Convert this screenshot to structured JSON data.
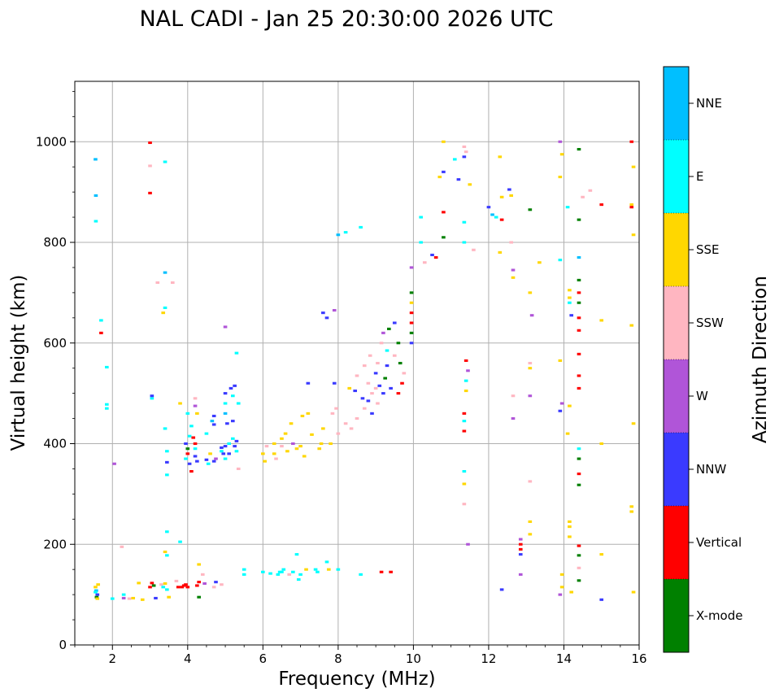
{
  "chart_data": {
    "type": "scatter",
    "title": "NAL CADI - Jan 25 20:30:00 2026 UTC",
    "xlabel": "Frequency (MHz)",
    "ylabel": "Virtual height (km)",
    "xlim": [
      1,
      16
    ],
    "ylim": [
      0,
      1120
    ],
    "xticks": [
      2,
      4,
      6,
      8,
      10,
      12,
      14,
      16
    ],
    "yticks": [
      0,
      200,
      400,
      600,
      800,
      1000
    ],
    "grid": true,
    "colorbar": {
      "label": "Azimuth Direction",
      "categories": [
        {
          "name": "X-mode",
          "color": "#008000"
        },
        {
          "name": "Vertical",
          "color": "#ff0000"
        },
        {
          "name": "NNW",
          "color": "#3a3aff"
        },
        {
          "name": "W",
          "color": "#b055d8"
        },
        {
          "name": "SSW",
          "color": "#ffb6c1"
        },
        {
          "name": "SSE",
          "color": "#ffd700"
        },
        {
          "name": "E",
          "color": "#00ffff"
        },
        {
          "name": "NNE",
          "color": "#00bfff"
        }
      ]
    },
    "series_note": "Each point: [frequency MHz, virtual height km, azimuth category index]",
    "points": [
      [
        1.55,
        115,
        5
      ],
      [
        1.57,
        108,
        7
      ],
      [
        1.6,
        100,
        2
      ],
      [
        1.58,
        95,
        0
      ],
      [
        1.62,
        120,
        5
      ],
      [
        1.55,
        105,
        6
      ],
      [
        1.6,
        92,
        5
      ],
      [
        1.55,
        965,
        7
      ],
      [
        1.56,
        893,
        7
      ],
      [
        1.56,
        842,
        6
      ],
      [
        1.7,
        645,
        6
      ],
      [
        1.7,
        620,
        1
      ],
      [
        1.85,
        552,
        6
      ],
      [
        1.85,
        478,
        6
      ],
      [
        1.85,
        470,
        6
      ],
      [
        2.0,
        92,
        6
      ],
      [
        2.05,
        360,
        3
      ],
      [
        2.25,
        195,
        4
      ],
      [
        2.3,
        93,
        3
      ],
      [
        2.3,
        100,
        6
      ],
      [
        2.45,
        92,
        4
      ],
      [
        2.55,
        93,
        5
      ],
      [
        2.7,
        123,
        5
      ],
      [
        2.8,
        90,
        5
      ],
      [
        3.0,
        998,
        1
      ],
      [
        3.0,
        952,
        4
      ],
      [
        3.0,
        898,
        1
      ],
      [
        3.05,
        490,
        6
      ],
      [
        3.05,
        495,
        2
      ],
      [
        3.0,
        115,
        1
      ],
      [
        3.05,
        123,
        1
      ],
      [
        3.1,
        118,
        0
      ],
      [
        3.15,
        93,
        2
      ],
      [
        3.2,
        720,
        4
      ],
      [
        3.3,
        120,
        4
      ],
      [
        3.35,
        115,
        6
      ],
      [
        3.35,
        660,
        5
      ],
      [
        3.4,
        740,
        7
      ],
      [
        3.4,
        670,
        6
      ],
      [
        3.4,
        960,
        6
      ],
      [
        3.45,
        110,
        6
      ],
      [
        3.4,
        122,
        5
      ],
      [
        3.45,
        385,
        6
      ],
      [
        3.45,
        363,
        2
      ],
      [
        3.45,
        338,
        6
      ],
      [
        3.4,
        430,
        6
      ],
      [
        3.45,
        225,
        6
      ],
      [
        3.4,
        185,
        5
      ],
      [
        3.45,
        178,
        6
      ],
      [
        3.5,
        95,
        5
      ],
      [
        3.6,
        720,
        4
      ],
      [
        3.7,
        127,
        4
      ],
      [
        3.75,
        115,
        1
      ],
      [
        3.8,
        205,
        6
      ],
      [
        3.8,
        480,
        5
      ],
      [
        3.85,
        115,
        1
      ],
      [
        3.9,
        118,
        1
      ],
      [
        3.95,
        120,
        1
      ],
      [
        4.0,
        115,
        1
      ],
      [
        3.95,
        400,
        2
      ],
      [
        4.0,
        390,
        0
      ],
      [
        4.0,
        380,
        1
      ],
      [
        3.95,
        370,
        6
      ],
      [
        4.05,
        360,
        2
      ],
      [
        4.1,
        345,
        1
      ],
      [
        4.05,
        415,
        6
      ],
      [
        4.1,
        435,
        6
      ],
      [
        4.0,
        460,
        6
      ],
      [
        4.15,
        412,
        1
      ],
      [
        4.2,
        400,
        1
      ],
      [
        4.2,
        390,
        6
      ],
      [
        4.2,
        375,
        2
      ],
      [
        4.25,
        365,
        2
      ],
      [
        4.2,
        490,
        4
      ],
      [
        4.2,
        475,
        3
      ],
      [
        4.25,
        460,
        5
      ],
      [
        4.3,
        160,
        5
      ],
      [
        4.25,
        118,
        1
      ],
      [
        4.3,
        95,
        0
      ],
      [
        4.3,
        125,
        1
      ],
      [
        4.4,
        140,
        4
      ],
      [
        4.45,
        122,
        3
      ],
      [
        4.5,
        368,
        2
      ],
      [
        4.55,
        360,
        6
      ],
      [
        4.5,
        420,
        6
      ],
      [
        4.6,
        380,
        5
      ],
      [
        4.65,
        445,
        7
      ],
      [
        4.7,
        455,
        2
      ],
      [
        4.7,
        438,
        2
      ],
      [
        4.7,
        365,
        2
      ],
      [
        4.75,
        370,
        3
      ],
      [
        4.7,
        115,
        4
      ],
      [
        4.75,
        125,
        2
      ],
      [
        4.9,
        392,
        2
      ],
      [
        4.9,
        385,
        6
      ],
      [
        4.95,
        380,
        2
      ],
      [
        4.9,
        120,
        4
      ],
      [
        5.0,
        500,
        2
      ],
      [
        5.0,
        480,
        6
      ],
      [
        5.0,
        460,
        7
      ],
      [
        5.0,
        395,
        2
      ],
      [
        5.0,
        370,
        6
      ],
      [
        5.0,
        632,
        3
      ],
      [
        5.05,
        440,
        2
      ],
      [
        5.1,
        400,
        6
      ],
      [
        5.1,
        380,
        2
      ],
      [
        5.15,
        510,
        2
      ],
      [
        5.2,
        495,
        6
      ],
      [
        5.2,
        445,
        2
      ],
      [
        5.2,
        410,
        6
      ],
      [
        5.25,
        395,
        2
      ],
      [
        5.3,
        405,
        2
      ],
      [
        5.3,
        385,
        6
      ],
      [
        5.35,
        350,
        4
      ],
      [
        5.5,
        140,
        6
      ],
      [
        5.5,
        150,
        6
      ],
      [
        5.3,
        580,
        6
      ],
      [
        5.35,
        480,
        6
      ],
      [
        5.25,
        515,
        2
      ],
      [
        6.0,
        145,
        6
      ],
      [
        6.0,
        380,
        5
      ],
      [
        6.05,
        365,
        5
      ],
      [
        6.1,
        395,
        4
      ],
      [
        6.2,
        142,
        6
      ],
      [
        6.3,
        400,
        5
      ],
      [
        6.3,
        380,
        5
      ],
      [
        6.35,
        370,
        4
      ],
      [
        6.4,
        140,
        6
      ],
      [
        6.45,
        145,
        6
      ],
      [
        6.5,
        410,
        5
      ],
      [
        6.5,
        395,
        4
      ],
      [
        6.5,
        145,
        6
      ],
      [
        6.55,
        150,
        6
      ],
      [
        6.6,
        420,
        5
      ],
      [
        6.65,
        385,
        5
      ],
      [
        6.7,
        140,
        4
      ],
      [
        6.75,
        440,
        5
      ],
      [
        6.8,
        400,
        3
      ],
      [
        6.8,
        145,
        6
      ],
      [
        6.9,
        180,
        6
      ],
      [
        6.9,
        390,
        5
      ],
      [
        6.95,
        130,
        6
      ],
      [
        7.0,
        395,
        5
      ],
      [
        7.0,
        140,
        6
      ],
      [
        7.05,
        455,
        5
      ],
      [
        7.1,
        375,
        5
      ],
      [
        7.15,
        150,
        5
      ],
      [
        7.2,
        520,
        2
      ],
      [
        7.2,
        460,
        5
      ],
      [
        7.3,
        418,
        5
      ],
      [
        7.4,
        150,
        6
      ],
      [
        7.45,
        145,
        6
      ],
      [
        7.5,
        390,
        5
      ],
      [
        7.55,
        400,
        5
      ],
      [
        7.6,
        430,
        5
      ],
      [
        7.6,
        660,
        2
      ],
      [
        7.7,
        650,
        2
      ],
      [
        7.7,
        165,
        6
      ],
      [
        7.75,
        150,
        5
      ],
      [
        7.8,
        400,
        5
      ],
      [
        7.85,
        460,
        4
      ],
      [
        7.9,
        520,
        2
      ],
      [
        7.9,
        665,
        3
      ],
      [
        7.95,
        470,
        4
      ],
      [
        8.0,
        420,
        4
      ],
      [
        8.0,
        150,
        6
      ],
      [
        8.0,
        815,
        7
      ],
      [
        8.2,
        440,
        4
      ],
      [
        8.2,
        820,
        6
      ],
      [
        8.3,
        510,
        5
      ],
      [
        8.35,
        430,
        4
      ],
      [
        8.45,
        505,
        2
      ],
      [
        8.5,
        535,
        4
      ],
      [
        8.5,
        450,
        4
      ],
      [
        8.6,
        830,
        6
      ],
      [
        8.6,
        140,
        6
      ],
      [
        8.65,
        490,
        2
      ],
      [
        8.7,
        555,
        4
      ],
      [
        8.7,
        470,
        4
      ],
      [
        8.8,
        520,
        4
      ],
      [
        8.8,
        485,
        2
      ],
      [
        8.85,
        575,
        4
      ],
      [
        8.9,
        500,
        4
      ],
      [
        8.9,
        460,
        2
      ],
      [
        9.0,
        540,
        2
      ],
      [
        9.0,
        510,
        4
      ],
      [
        9.05,
        560,
        4
      ],
      [
        9.05,
        480,
        4
      ],
      [
        9.1,
        515,
        2
      ],
      [
        9.15,
        600,
        4
      ],
      [
        9.15,
        145,
        1
      ],
      [
        9.2,
        620,
        3
      ],
      [
        9.2,
        500,
        2
      ],
      [
        9.25,
        530,
        0
      ],
      [
        9.3,
        555,
        2
      ],
      [
        9.3,
        585,
        6
      ],
      [
        9.35,
        628,
        0
      ],
      [
        9.4,
        145,
        1
      ],
      [
        9.4,
        510,
        2
      ],
      [
        9.5,
        640,
        2
      ],
      [
        9.5,
        575,
        4
      ],
      [
        9.6,
        600,
        0
      ],
      [
        9.6,
        500,
        1
      ],
      [
        9.65,
        560,
        0
      ],
      [
        9.7,
        520,
        1
      ],
      [
        9.75,
        540,
        4
      ],
      [
        9.95,
        700,
        0
      ],
      [
        9.95,
        680,
        5
      ],
      [
        9.95,
        660,
        1
      ],
      [
        9.95,
        640,
        1
      ],
      [
        9.95,
        620,
        0
      ],
      [
        9.95,
        600,
        2
      ],
      [
        9.95,
        750,
        3
      ],
      [
        10.2,
        850,
        6
      ],
      [
        10.2,
        800,
        6
      ],
      [
        10.3,
        760,
        4
      ],
      [
        10.5,
        775,
        2
      ],
      [
        10.6,
        770,
        1
      ],
      [
        10.7,
        930,
        5
      ],
      [
        10.8,
        1000,
        5
      ],
      [
        10.8,
        940,
        2
      ],
      [
        10.8,
        860,
        1
      ],
      [
        10.8,
        810,
        0
      ],
      [
        11.1,
        965,
        6
      ],
      [
        11.2,
        925,
        2
      ],
      [
        11.35,
        990,
        4
      ],
      [
        11.4,
        980,
        4
      ],
      [
        11.35,
        970,
        2
      ],
      [
        11.35,
        800,
        6
      ],
      [
        11.35,
        840,
        6
      ],
      [
        11.4,
        565,
        1
      ],
      [
        11.45,
        545,
        3
      ],
      [
        11.4,
        525,
        6
      ],
      [
        11.4,
        505,
        5
      ],
      [
        11.35,
        460,
        1
      ],
      [
        11.35,
        445,
        6
      ],
      [
        11.35,
        425,
        1
      ],
      [
        11.35,
        345,
        6
      ],
      [
        11.35,
        320,
        5
      ],
      [
        11.35,
        280,
        4
      ],
      [
        11.45,
        200,
        3
      ],
      [
        11.5,
        915,
        5
      ],
      [
        11.6,
        785,
        4
      ],
      [
        12.0,
        870,
        2
      ],
      [
        12.1,
        855,
        7
      ],
      [
        12.2,
        850,
        6
      ],
      [
        12.3,
        970,
        5
      ],
      [
        12.35,
        890,
        5
      ],
      [
        12.35,
        845,
        1
      ],
      [
        12.3,
        780,
        5
      ],
      [
        12.35,
        110,
        2
      ],
      [
        12.55,
        905,
        2
      ],
      [
        12.6,
        893,
        5
      ],
      [
        12.6,
        800,
        4
      ],
      [
        12.65,
        745,
        3
      ],
      [
        12.65,
        730,
        5
      ],
      [
        12.65,
        495,
        4
      ],
      [
        12.65,
        450,
        3
      ],
      [
        12.85,
        210,
        3
      ],
      [
        12.85,
        200,
        1
      ],
      [
        12.85,
        190,
        1
      ],
      [
        12.85,
        180,
        2
      ],
      [
        12.85,
        140,
        3
      ],
      [
        13.1,
        865,
        0
      ],
      [
        13.1,
        700,
        5
      ],
      [
        13.15,
        655,
        3
      ],
      [
        13.1,
        560,
        4
      ],
      [
        13.1,
        550,
        5
      ],
      [
        13.1,
        495,
        3
      ],
      [
        13.1,
        325,
        4
      ],
      [
        13.1,
        245,
        5
      ],
      [
        13.1,
        220,
        5
      ],
      [
        13.35,
        760,
        5
      ],
      [
        13.9,
        1000,
        3
      ],
      [
        13.95,
        975,
        5
      ],
      [
        13.9,
        930,
        5
      ],
      [
        13.9,
        765,
        6
      ],
      [
        13.9,
        565,
        5
      ],
      [
        13.95,
        480,
        3
      ],
      [
        13.9,
        465,
        2
      ],
      [
        13.95,
        140,
        5
      ],
      [
        13.95,
        115,
        5
      ],
      [
        13.9,
        100,
        3
      ],
      [
        14.1,
        870,
        6
      ],
      [
        14.15,
        705,
        5
      ],
      [
        14.15,
        690,
        5
      ],
      [
        14.15,
        680,
        6
      ],
      [
        14.2,
        655,
        2
      ],
      [
        14.15,
        475,
        5
      ],
      [
        14.1,
        420,
        5
      ],
      [
        14.15,
        245,
        5
      ],
      [
        14.15,
        235,
        5
      ],
      [
        14.15,
        215,
        5
      ],
      [
        14.2,
        105,
        5
      ],
      [
        14.4,
        985,
        0
      ],
      [
        14.4,
        845,
        0
      ],
      [
        14.4,
        770,
        7
      ],
      [
        14.4,
        725,
        0
      ],
      [
        14.4,
        700,
        1
      ],
      [
        14.4,
        680,
        0
      ],
      [
        14.4,
        650,
        1
      ],
      [
        14.4,
        625,
        1
      ],
      [
        14.4,
        578,
        1
      ],
      [
        14.4,
        535,
        1
      ],
      [
        14.4,
        510,
        1
      ],
      [
        14.4,
        390,
        6
      ],
      [
        14.4,
        370,
        0
      ],
      [
        14.4,
        340,
        1
      ],
      [
        14.4,
        318,
        0
      ],
      [
        14.4,
        197,
        1
      ],
      [
        14.4,
        178,
        0
      ],
      [
        14.4,
        153,
        4
      ],
      [
        14.4,
        128,
        0
      ],
      [
        14.5,
        890,
        4
      ],
      [
        14.7,
        903,
        4
      ],
      [
        15.0,
        875,
        1
      ],
      [
        15.0,
        645,
        5
      ],
      [
        15.0,
        400,
        5
      ],
      [
        15.0,
        180,
        5
      ],
      [
        15.0,
        90,
        2
      ],
      [
        15.8,
        1000,
        1
      ],
      [
        15.85,
        950,
        5
      ],
      [
        15.8,
        875,
        5
      ],
      [
        15.8,
        870,
        1
      ],
      [
        15.85,
        815,
        5
      ],
      [
        15.8,
        635,
        5
      ],
      [
        15.85,
        440,
        5
      ],
      [
        15.8,
        275,
        5
      ],
      [
        15.8,
        265,
        5
      ],
      [
        15.85,
        105,
        5
      ]
    ]
  }
}
